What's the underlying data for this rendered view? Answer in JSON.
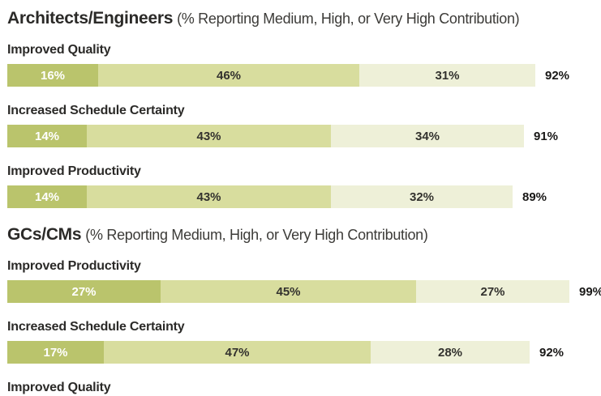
{
  "chart_data": {
    "type": "bar",
    "variant": "horizontal-stacked",
    "unit": "%",
    "value_labels": "inside-segments",
    "total_labels": "right-of-bar",
    "axes": "none",
    "grid": false,
    "legend": "none",
    "segment_colors": [
      "#bac46c",
      "#d8dd9e",
      "#eef0d8"
    ],
    "segment_label_colors": [
      "#ffffff",
      "#33322e",
      "#33322e"
    ],
    "total_label_color": "#191817",
    "sections": [
      {
        "title": "Architects/Engineers",
        "subtitle": "(% Reporting Medium, High, or Very High Contribution)",
        "rows": [
          {
            "label": "Improved Quality",
            "segments": [
              16,
              46,
              31
            ],
            "total": 92
          },
          {
            "label": "Increased Schedule Certainty",
            "segments": [
              14,
              43,
              34
            ],
            "total": 91
          },
          {
            "label": "Improved Productivity",
            "segments": [
              14,
              43,
              32
            ],
            "total": 89
          }
        ]
      },
      {
        "title": "GCs/CMs",
        "subtitle": "(% Reporting Medium, High, or Very High Contribution)",
        "rows": [
          {
            "label": "Improved Productivity",
            "segments": [
              27,
              45,
              27
            ],
            "total": 99
          },
          {
            "label": "Increased Schedule Certainty",
            "segments": [
              17,
              47,
              28
            ],
            "total": 92
          },
          {
            "label": "Improved Quality",
            "segments": null,
            "total": null,
            "partially_visible": true
          }
        ]
      }
    ]
  }
}
